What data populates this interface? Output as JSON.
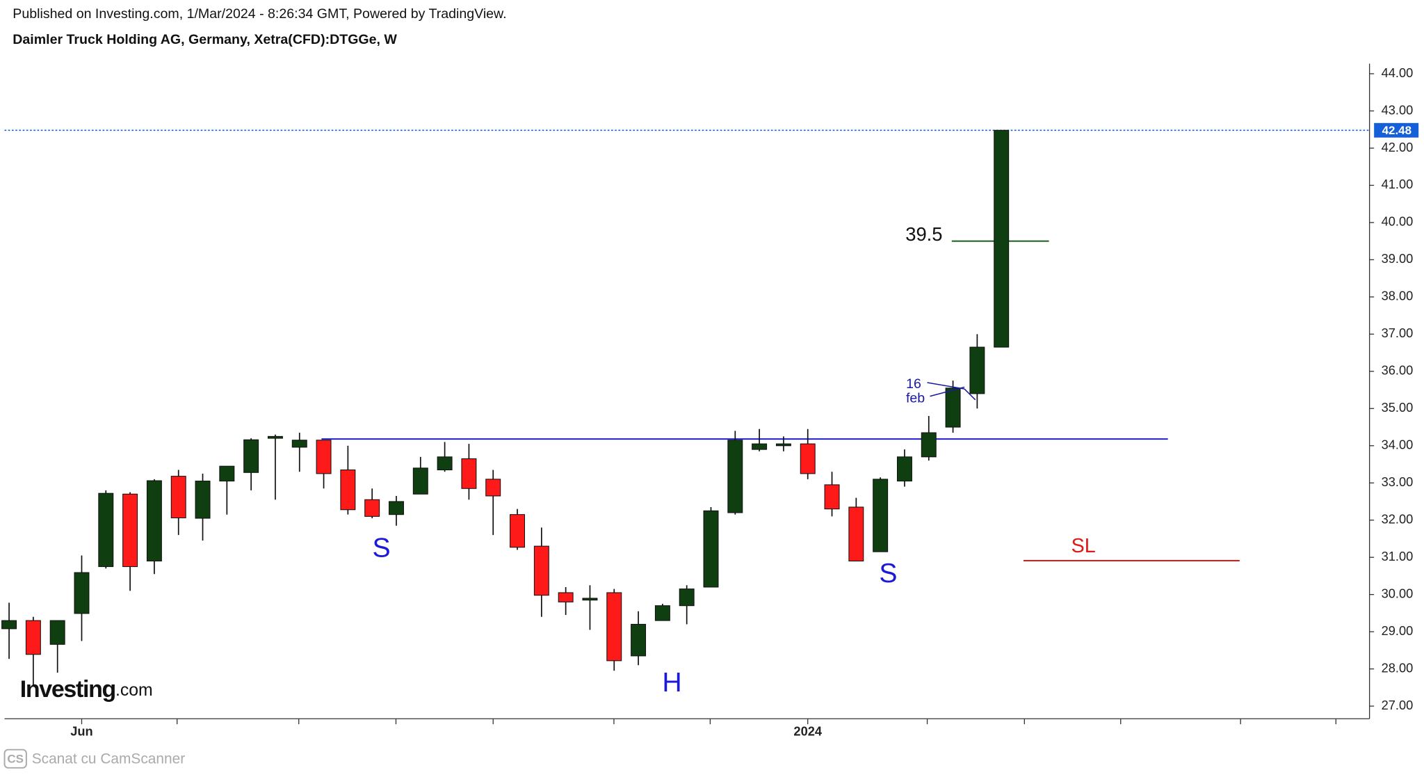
{
  "chart_data": {
    "type": "candlestick",
    "publisher": "Published on Investing.com, 1/Mar/2024 - 8:26:34 GMT, Powered by TradingView.",
    "title": "Daimler Truck Holding AG, Germany, Xetra(CFD):DTGGe, W",
    "logo_text": "Investing",
    "logo_suffix": ".com",
    "scanner_badge": "CS",
    "scanner_text": "Scanat cu CamScanner",
    "categories": [
      null,
      null,
      null,
      "Jun",
      null,
      null,
      null,
      null,
      null,
      null,
      null,
      null,
      null,
      null,
      null,
      null,
      null,
      null,
      null,
      null,
      null,
      null,
      null,
      null,
      null,
      null,
      null,
      null,
      null,
      null,
      null,
      null,
      null,
      "2024",
      null,
      null,
      null,
      null,
      null,
      null,
      null,
      null
    ],
    "open": [
      29.08,
      29.3,
      28.66,
      29.49,
      30.75,
      32.7,
      30.9,
      33.18,
      32.05,
      33.05,
      33.28,
      34.2,
      33.96,
      34.15,
      33.35,
      32.55,
      32.15,
      32.7,
      33.35,
      33.65,
      33.1,
      32.15,
      31.3,
      30.05,
      29.85,
      30.05,
      28.35,
      29.3,
      29.7,
      30.2,
      32.2,
      33.9,
      34.0,
      34.05,
      32.95,
      32.35,
      31.15,
      33.05,
      33.7,
      34.5,
      35.4,
      36.65
    ],
    "high": [
      29.78,
      29.4,
      29.3,
      31.05,
      32.8,
      32.75,
      33.1,
      33.35,
      33.25,
      33.45,
      34.2,
      34.3,
      34.35,
      34.15,
      34.0,
      32.85,
      32.65,
      33.7,
      34.1,
      34.05,
      33.35,
      32.3,
      31.8,
      30.2,
      30.25,
      30.15,
      29.55,
      29.75,
      30.25,
      32.35,
      34.4,
      34.45,
      34.25,
      34.45,
      33.3,
      32.6,
      33.15,
      33.9,
      34.8,
      35.75,
      37.0,
      42.48
    ],
    "low": [
      28.27,
      27.54,
      27.9,
      28.75,
      30.7,
      30.1,
      30.55,
      31.6,
      31.45,
      32.15,
      32.8,
      32.55,
      33.3,
      32.85,
      32.15,
      32.05,
      31.85,
      32.7,
      33.3,
      32.55,
      31.6,
      31.2,
      29.4,
      29.45,
      29.05,
      27.95,
      28.1,
      29.3,
      29.2,
      30.2,
      32.15,
      33.85,
      33.85,
      33.1,
      32.1,
      30.9,
      31.15,
      32.9,
      33.6,
      34.35,
      35.0,
      36.65
    ],
    "close": [
      29.3,
      28.39,
      29.3,
      30.59,
      32.72,
      30.75,
      33.06,
      32.06,
      33.05,
      33.45,
      34.16,
      34.25,
      34.15,
      33.25,
      32.28,
      32.1,
      32.5,
      33.4,
      33.7,
      32.85,
      32.65,
      31.27,
      29.98,
      29.8,
      29.9,
      28.22,
      29.2,
      29.7,
      30.15,
      32.25,
      34.15,
      34.05,
      34.05,
      33.25,
      32.3,
      30.9,
      33.1,
      33.7,
      34.35,
      35.55,
      36.65,
      42.48
    ],
    "up_color": "#0f3f10",
    "down_color": "#ff1a1a",
    "last_price": 42.48,
    "last_price_color": "#1560d8",
    "levels": [
      {
        "value": 34.18,
        "color": "#1f1fd0"
      },
      {
        "value": 30.91,
        "color": "#e01818"
      },
      {
        "value": 39.5,
        "color": "#1d5a1d"
      }
    ],
    "annotations": [
      {
        "text": "S",
        "color": "#1a1ad8"
      },
      {
        "text": "H",
        "color": "#1a1ad8"
      },
      {
        "text": "S",
        "color": "#1a1ad8"
      },
      {
        "text": "SL",
        "color": "#e01818"
      },
      {
        "text": "16",
        "color": "#1a1aa0"
      },
      {
        "text": "feb",
        "color": "#1a1aa0"
      }
    ],
    "ylim": [
      26.66,
      44.27
    ],
    "yticks": [
      {
        "value": 27,
        "label": "27.00"
      },
      {
        "value": 28,
        "label": "28.00"
      },
      {
        "value": 29,
        "label": "29.00"
      },
      {
        "value": 30,
        "label": "30.00"
      },
      {
        "value": 31,
        "label": "31.00"
      },
      {
        "value": 32,
        "label": "32.00"
      },
      {
        "value": 33,
        "label": "33.00"
      },
      {
        "value": 34,
        "label": "34.00"
      },
      {
        "value": 35,
        "label": "35.00"
      },
      {
        "value": 36,
        "label": "36.00"
      },
      {
        "value": 37,
        "label": "37.00"
      },
      {
        "value": 38,
        "label": "38.00"
      },
      {
        "value": 39,
        "label": "39.00"
      },
      {
        "value": 40,
        "label": "40.00"
      },
      {
        "value": 41,
        "label": "41.00"
      },
      {
        "value": 42,
        "label": "42.00"
      },
      {
        "value": 43,
        "label": "43.00"
      },
      {
        "value": 44,
        "label": "44.00"
      }
    ]
  }
}
